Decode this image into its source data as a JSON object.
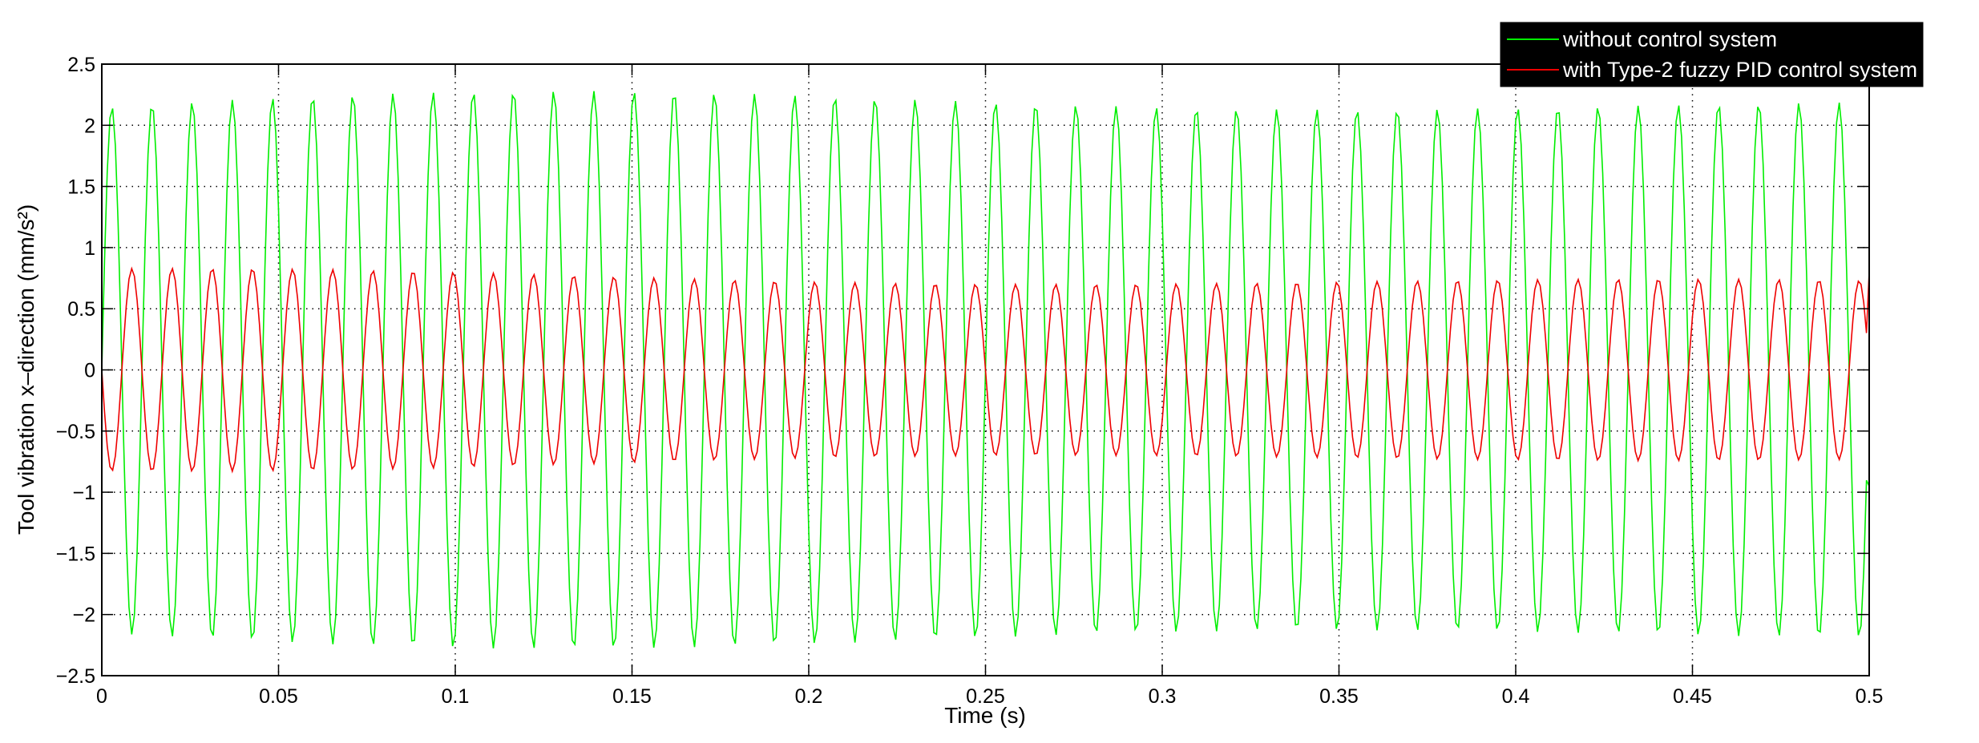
{
  "chart_data": {
    "type": "line",
    "title": "",
    "xlabel": "Time (s)",
    "ylabel": "Tool vibration x–direction (mm/s²)",
    "xlim": [
      0,
      0.5
    ],
    "ylim": [
      -2.5,
      2.5
    ],
    "xticks": [
      "0",
      "0.05",
      "0.1",
      "0.15",
      "0.2",
      "0.25",
      "0.3",
      "0.35",
      "0.4",
      "0.45",
      "0.5"
    ],
    "yticks": [
      "2.5",
      "2",
      "1.5",
      "1",
      "0.5",
      "0",
      "−0.5",
      "−1",
      "−1.5",
      "−2",
      "−2.5"
    ],
    "grid": true,
    "legend_position": "top-right",
    "legend_background": "#000000",
    "series": [
      {
        "name": "without control system",
        "color": "#00ee00",
        "frequency_hz": 88,
        "amplitude": 2.2,
        "amplitude_range": [
          2.0,
          2.3
        ],
        "x_start": 0,
        "x_end": 0.5,
        "end_value": -0.95
      },
      {
        "name": "with Type-2 fuzzy PID control system",
        "color": "#ee0000",
        "frequency_hz": 88,
        "amplitude": 0.75,
        "amplitude_range": [
          0.65,
          0.83
        ],
        "x_start": 0,
        "x_end": 0.5,
        "end_value": 0.8
      }
    ]
  }
}
